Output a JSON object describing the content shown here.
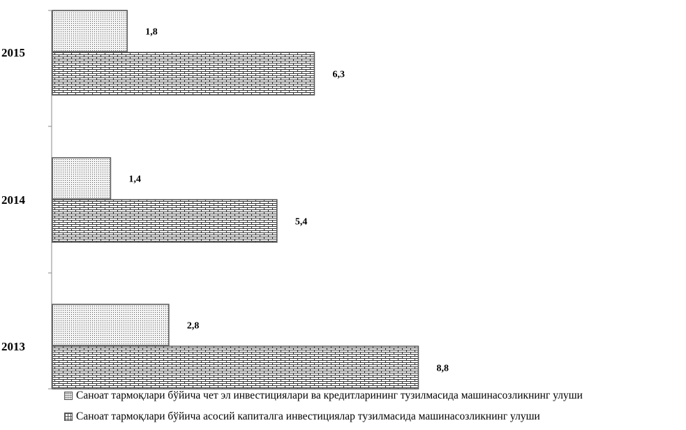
{
  "chart_data": {
    "type": "bar",
    "orientation": "horizontal",
    "categories": [
      "2015",
      "2014",
      "2013"
    ],
    "series": [
      {
        "name": "Саноат тармоқлари бўйича чет эл инвестициялари ва кредитларининг тузилмасида машинасозликнинг улуши",
        "values": [
          1.8,
          1.4,
          2.8
        ],
        "value_labels": [
          "1,8",
          "1,4",
          "2,8"
        ],
        "pattern": "dots"
      },
      {
        "name": "Саноат тармоқлари бўйича асосий капиталга инвестициялар тузилмасида машинасозликнинг улуши",
        "values": [
          6.3,
          5.4,
          8.8
        ],
        "value_labels": [
          "6,3",
          "5,4",
          "8,8"
        ],
        "pattern": "brick"
      }
    ],
    "xlim": [
      0,
      10
    ],
    "grid": false,
    "legend_position": "bottom",
    "title": "",
    "xlabel": "",
    "ylabel": ""
  }
}
